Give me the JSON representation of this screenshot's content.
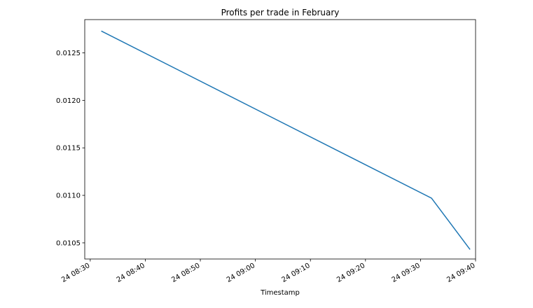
{
  "chart_data": {
    "type": "line",
    "title": "Profits per trade in February",
    "xlabel": "Timestamp",
    "ylabel": "",
    "x_ticks": [
      "24 08:30",
      "24 08:40",
      "24 08:50",
      "24 09:00",
      "24 09:10",
      "24 09:20",
      "24 09:30",
      "24 09:40"
    ],
    "y_ticks": [
      "0.0105",
      "0.0110",
      "0.0115",
      "0.0120",
      "0.0125"
    ],
    "xlim": [
      "24 08:29",
      "24 09:40"
    ],
    "ylim": [
      0.01033,
      0.01285
    ],
    "series": [
      {
        "color": "#1f77b4",
        "x": [
          "24 08:32",
          "24 09:32",
          "24 09:39"
        ],
        "y": [
          0.01273,
          0.01097,
          0.01043
        ]
      }
    ],
    "grid": false,
    "legend": "none"
  }
}
